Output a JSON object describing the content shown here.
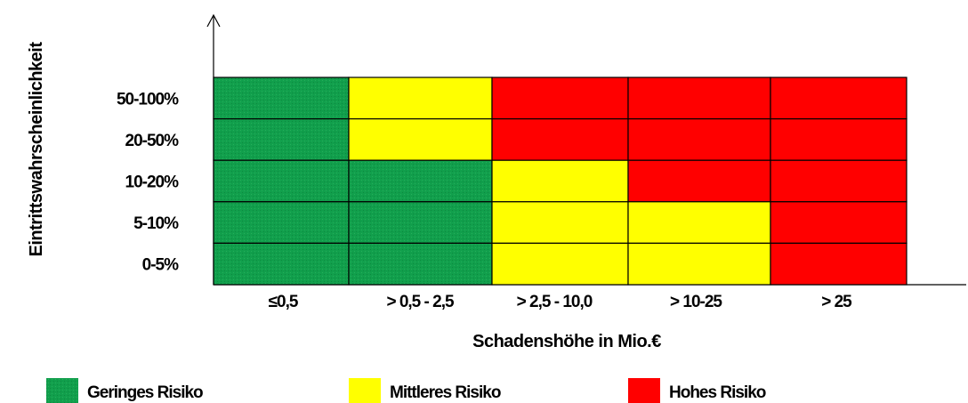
{
  "chart_data": {
    "type": "heatmap",
    "title": "",
    "xlabel": "Schadenshöhe in Mio.€",
    "ylabel": "Eintrittswahrscheinlichkeit",
    "x_categories": [
      "≤0,5",
      "> 0,5 - 2,5",
      "> 2,5 - 10,0",
      "> 10-25",
      "> 25"
    ],
    "y_categories": [
      "50-100%",
      "20-50%",
      "10-20%",
      "5-10%",
      "0-5%"
    ],
    "cells": [
      [
        "gering",
        "mittel",
        "hoch",
        "hoch",
        "hoch"
      ],
      [
        "gering",
        "mittel",
        "hoch",
        "hoch",
        "hoch"
      ],
      [
        "gering",
        "gering",
        "mittel",
        "hoch",
        "hoch"
      ],
      [
        "gering",
        "gering",
        "mittel",
        "mittel",
        "hoch"
      ],
      [
        "gering",
        "gering",
        "mittel",
        "mittel",
        "hoch"
      ]
    ],
    "levels": {
      "gering": {
        "label": "Geringes Risiko",
        "color": "#119f4c"
      },
      "mittel": {
        "label": "Mittleres Risiko",
        "color": "#ffff00"
      },
      "hoch": {
        "label": "Hohes Risiko",
        "color": "#ff0000"
      }
    },
    "legend": {
      "placement": "bottom",
      "order": [
        "gering",
        "mittel",
        "hoch"
      ]
    },
    "grid": true
  }
}
